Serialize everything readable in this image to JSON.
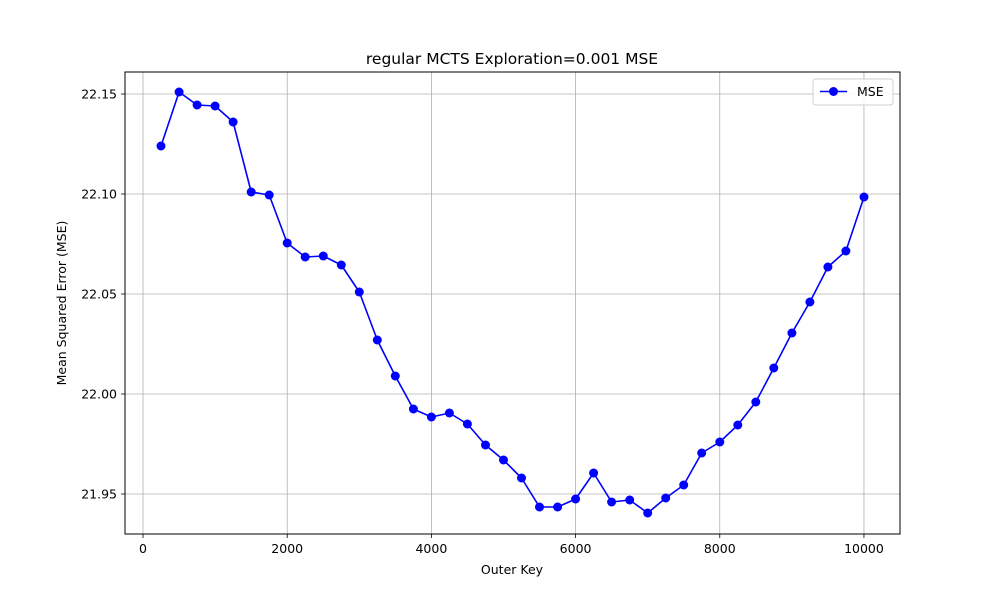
{
  "chart_data": {
    "type": "line",
    "title": "regular MCTS Exploration=0.001 MSE",
    "xlabel": "Outer Key",
    "ylabel": "Mean Squared Error (MSE)",
    "xlim": [
      -250,
      10500
    ],
    "ylim": [
      21.93,
      22.161
    ],
    "xticks": [
      0,
      2000,
      4000,
      6000,
      8000,
      10000
    ],
    "xtick_labels": [
      "0",
      "2000",
      "4000",
      "6000",
      "8000",
      "10000"
    ],
    "yticks": [
      21.95,
      22.0,
      22.05,
      22.1,
      22.15
    ],
    "ytick_labels": [
      "21.95",
      "22.00",
      "22.05",
      "22.10",
      "22.15"
    ],
    "grid": true,
    "legend_position": "top-right",
    "series": [
      {
        "name": "MSE",
        "color": "#0000ff",
        "marker": "circle",
        "x": [
          250,
          500,
          750,
          1000,
          1250,
          1500,
          1750,
          2000,
          2250,
          2500,
          2750,
          3000,
          3250,
          3500,
          3750,
          4000,
          4250,
          4500,
          4750,
          5000,
          5250,
          5500,
          5750,
          6000,
          6250,
          6500,
          6750,
          7000,
          7250,
          7500,
          7750,
          8000,
          8250,
          8500,
          8750,
          9000,
          9250,
          9500,
          9750,
          10000
        ],
        "y": [
          22.124,
          22.151,
          22.1445,
          22.144,
          22.136,
          22.101,
          22.0995,
          22.0755,
          22.0685,
          22.069,
          22.0645,
          22.051,
          22.027,
          22.009,
          21.9925,
          21.9885,
          21.9905,
          21.985,
          21.9745,
          21.967,
          21.958,
          21.9435,
          21.9435,
          21.9475,
          21.9605,
          21.946,
          21.947,
          21.9405,
          21.948,
          21.9545,
          21.9705,
          21.976,
          21.9845,
          21.996,
          22.013,
          22.0305,
          22.046,
          22.0635,
          22.0715,
          22.0985
        ]
      }
    ]
  }
}
